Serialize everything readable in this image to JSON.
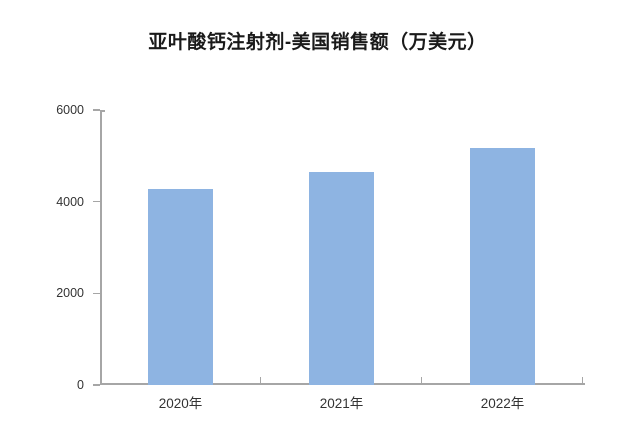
{
  "title": "亚叶酸钙注射剂-美国销售额（万美元）",
  "chart_data": {
    "type": "bar",
    "title": "亚叶酸钙注射剂-美国销售额（万美元）",
    "categories": [
      "2020年",
      "2021年",
      "2022年"
    ],
    "values": [
      4270,
      4650,
      5170
    ],
    "ylim": [
      0,
      6000
    ],
    "yticks": [
      0,
      2000,
      4000,
      6000
    ],
    "xlabel": "",
    "ylabel": "",
    "grid": false,
    "legend": "none",
    "colors": {
      "bar": "#8EB4E2",
      "axis": "#A6A6A6",
      "tick_label": "#333333",
      "title": "#1A1A1A",
      "background": "#FFFFFF"
    }
  }
}
